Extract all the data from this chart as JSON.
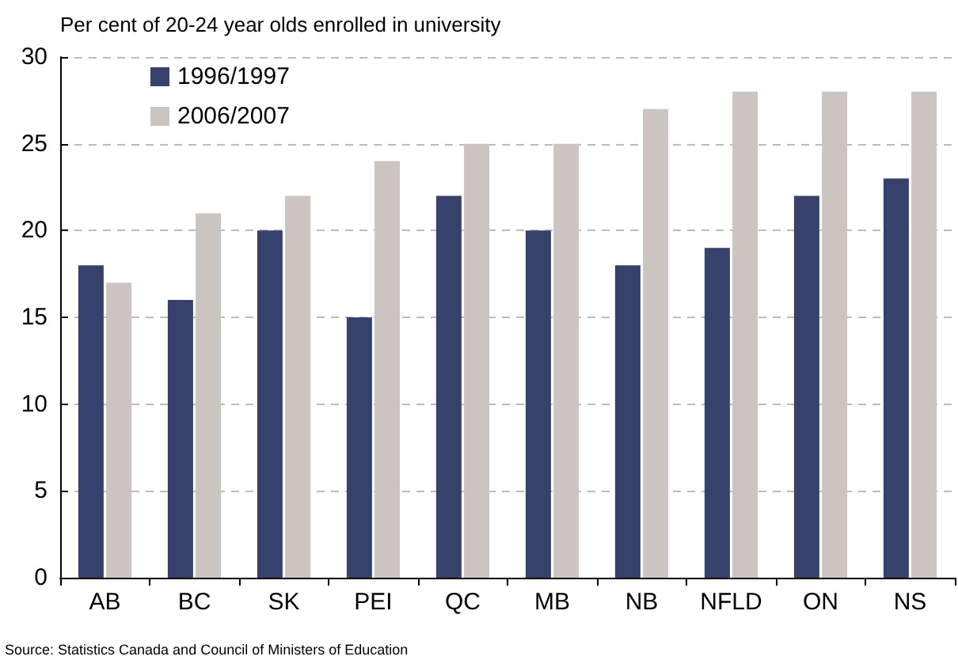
{
  "chart_data": {
    "type": "bar",
    "ylabel": "Per cent of 20-24 year olds enrolled in university",
    "categories": [
      "AB",
      "BC",
      "SK",
      "PEI",
      "QC",
      "MB",
      "NB",
      "NFLD",
      "ON",
      "NS"
    ],
    "series": [
      {
        "name": "1996/1997",
        "color": "#36426c",
        "values": [
          18,
          16,
          20,
          15,
          22,
          20,
          18,
          19,
          22,
          23
        ]
      },
      {
        "name": "2006/2007",
        "color": "#ccc4c0",
        "values": [
          17,
          21,
          22,
          24,
          25,
          25,
          27,
          28,
          28,
          28
        ]
      }
    ],
    "ylim": [
      0,
      30
    ],
    "yticks": [
      0,
      5,
      10,
      15,
      20,
      25,
      30
    ],
    "grid": "y",
    "legend": "top left",
    "annotations": [
      "Source: Statistics Canada and Council of Ministers of Education"
    ]
  }
}
